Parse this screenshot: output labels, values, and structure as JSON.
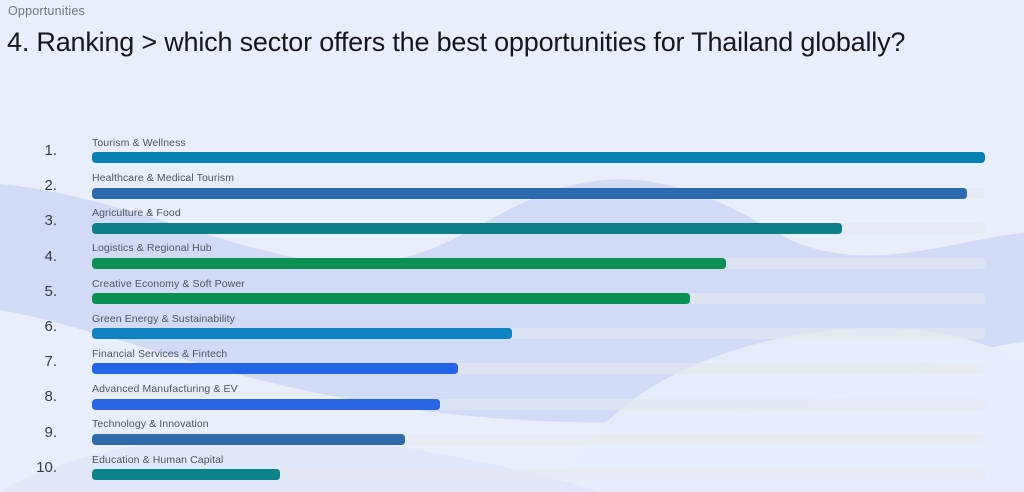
{
  "page": {
    "eyebrow": "Opportunities",
    "title": "4. Ranking > which sector offers the best opportunities for Thailand globally?"
  },
  "chart_data": {
    "type": "bar",
    "orientation": "horizontal",
    "title": "4. Ranking > which sector offers the best opportunities for Thailand globally?",
    "section_label": "Opportunities",
    "ranks": [
      "1.",
      "2.",
      "3.",
      "4.",
      "5.",
      "6.",
      "7.",
      "8.",
      "9.",
      "10."
    ],
    "categories": [
      "Tourism & Wellness",
      "Healthcare & Medical Tourism",
      "Agriculture & Food",
      "Logistics & Regional Hub",
      "Creative Economy & Soft Power",
      "Green Energy & Sustainability",
      "Financial Services & Fintech",
      "Advanced Manufacturing & EV",
      "Technology & Innovation",
      "Education & Human Capital"
    ],
    "values": [
      100,
      98,
      84,
      71,
      67,
      47,
      41,
      39,
      35,
      21
    ],
    "value_unit": "percent_of_track",
    "xlim": [
      0,
      100
    ],
    "grid": false,
    "legend": false,
    "bar_colors": [
      "#0681b6",
      "#2c69af",
      "#0d7f85",
      "#0b8f53",
      "#0b9053",
      "#0c82c0",
      "#2365e6",
      "#2866e3",
      "#2e6ba8",
      "#0b8388"
    ],
    "track_color": "rgba(228,232,239,0.66)",
    "background_color": "#e9eefb",
    "wave_color": "#c2cff2"
  }
}
